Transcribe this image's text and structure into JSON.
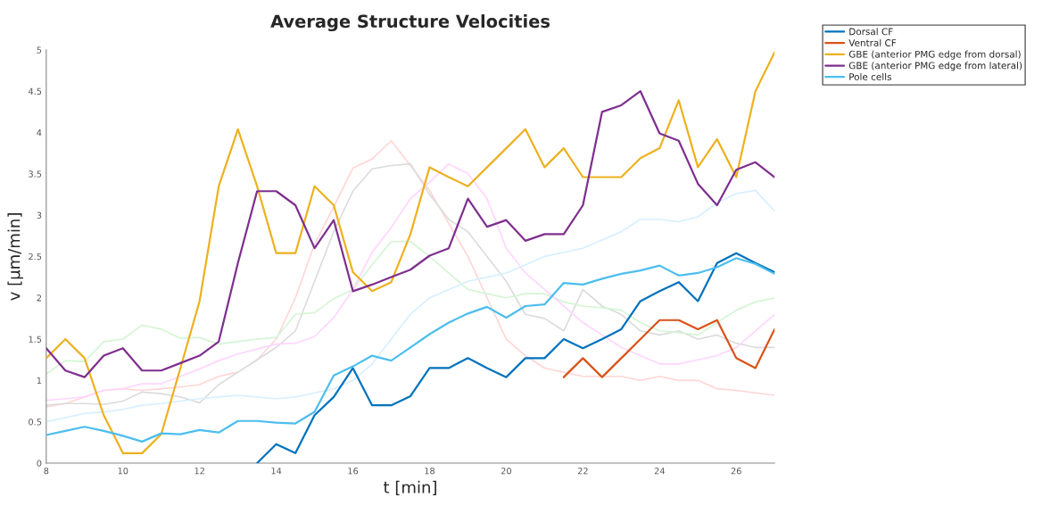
{
  "chart_data": {
    "type": "line",
    "title": "Average Structure Velocities",
    "xlabel": "t [min]",
    "ylabel": "v [µm/min]",
    "x": [
      8,
      8.5,
      9,
      9.5,
      10,
      10.5,
      11,
      11.5,
      12,
      12.5,
      13,
      13.5,
      14,
      14.5,
      15,
      15.5,
      16,
      16.5,
      17,
      17.5,
      18,
      18.5,
      19,
      19.5,
      20,
      20.5,
      21,
      21.5,
      22,
      22.5,
      23,
      23.5,
      24,
      24.5,
      25,
      25.5,
      26,
      26.5,
      27
    ],
    "xlim": [
      8,
      27
    ],
    "xticks": [
      8,
      10,
      12,
      14,
      16,
      18,
      20,
      22,
      24,
      26
    ],
    "ylim": [
      0,
      5
    ],
    "yticks": [
      0,
      0.5,
      1,
      1.5,
      2,
      2.5,
      3,
      3.5,
      4,
      4.5,
      5
    ],
    "grid": false,
    "legend": "top right",
    "line_style": "solid",
    "marker": "none",
    "series": [
      {
        "color": "#ffd6d6",
        "values": [
          0.68,
          0.72,
          0.8,
          0.88,
          0.9,
          0.88,
          0.9,
          0.92,
          0.95,
          1.05,
          1.1,
          1.25,
          1.5,
          2.0,
          2.65,
          3.1,
          3.57,
          3.68,
          3.9,
          3.6,
          3.3,
          2.9,
          2.5,
          2.0,
          1.5,
          1.3,
          1.15,
          1.1,
          1.05,
          1.05,
          1.05,
          1.0,
          1.05,
          1.0,
          1.0,
          0.9,
          0.88,
          0.85,
          0.82
        ]
      },
      {
        "color": "#dcdcdc",
        "values": [
          0.7,
          0.72,
          0.72,
          0.71,
          0.75,
          0.86,
          0.84,
          0.8,
          0.73,
          0.95,
          1.1,
          1.25,
          1.4,
          1.6,
          2.2,
          2.8,
          3.29,
          3.56,
          3.6,
          3.62,
          3.25,
          2.95,
          2.8,
          2.5,
          2.2,
          1.8,
          1.75,
          1.6,
          2.1,
          1.9,
          1.8,
          1.6,
          1.55,
          1.6,
          1.5,
          1.55,
          1.45,
          1.4,
          1.4
        ]
      },
      {
        "color": "#d4f5d4",
        "values": [
          1.08,
          1.24,
          1.23,
          1.47,
          1.5,
          1.67,
          1.62,
          1.51,
          1.52,
          1.44,
          1.47,
          1.5,
          1.52,
          1.8,
          1.82,
          1.99,
          2.1,
          2.4,
          2.68,
          2.68,
          2.5,
          2.3,
          2.1,
          2.05,
          2.0,
          2.05,
          2.05,
          1.95,
          1.9,
          1.88,
          1.85,
          1.7,
          1.6,
          1.58,
          1.55,
          1.7,
          1.85,
          1.95,
          2.0
        ]
      },
      {
        "color": "#ffd6ff",
        "values": [
          0.76,
          0.78,
          0.8,
          0.88,
          0.9,
          0.96,
          0.96,
          1.05,
          1.14,
          1.24,
          1.32,
          1.38,
          1.44,
          1.45,
          1.53,
          1.76,
          2.1,
          2.55,
          2.85,
          3.2,
          3.4,
          3.62,
          3.5,
          3.2,
          2.6,
          2.3,
          2.1,
          1.9,
          1.7,
          1.55,
          1.4,
          1.3,
          1.2,
          1.2,
          1.25,
          1.3,
          1.4,
          1.6,
          1.8
        ]
      },
      {
        "color": "#d6efff",
        "values": [
          0.5,
          0.55,
          0.6,
          0.62,
          0.65,
          0.7,
          0.72,
          0.75,
          0.78,
          0.8,
          0.82,
          0.8,
          0.78,
          0.8,
          0.85,
          0.9,
          1.0,
          1.2,
          1.5,
          1.8,
          2.0,
          2.1,
          2.2,
          2.25,
          2.3,
          2.4,
          2.5,
          2.55,
          2.6,
          2.7,
          2.8,
          2.95,
          2.95,
          2.92,
          2.98,
          3.15,
          3.26,
          3.3,
          3.05
        ]
      },
      {
        "name": "Dorsal CF",
        "color": "#0072bd",
        "values": [
          null,
          null,
          null,
          null,
          null,
          null,
          null,
          null,
          null,
          null,
          null,
          0,
          0.23,
          0.12,
          0.58,
          0.8,
          1.15,
          0.7,
          0.7,
          0.81,
          1.15,
          1.15,
          1.27,
          1.15,
          1.04,
          1.27,
          1.27,
          1.5,
          1.39,
          1.5,
          1.62,
          1.96,
          2.08,
          2.19,
          1.96,
          2.42,
          2.54,
          2.42,
          2.31
        ]
      },
      {
        "name": "Ventral CF",
        "color": "#d95319",
        "values": [
          null,
          null,
          null,
          null,
          null,
          null,
          null,
          null,
          null,
          null,
          null,
          null,
          null,
          null,
          null,
          null,
          null,
          null,
          null,
          null,
          null,
          null,
          null,
          null,
          null,
          null,
          null,
          1.04,
          1.27,
          1.04,
          1.27,
          1.5,
          1.73,
          1.73,
          1.62,
          1.73,
          1.27,
          1.15,
          1.62
        ]
      },
      {
        "name": "GBE (anterior PMG edge from dorsal)",
        "color": "#edb120",
        "values": [
          1.27,
          1.5,
          1.27,
          0.58,
          0.12,
          0.12,
          0.35,
          1.15,
          1.96,
          3.35,
          4.04,
          3.35,
          2.54,
          2.54,
          3.35,
          3.12,
          2.31,
          2.08,
          2.19,
          2.77,
          3.58,
          3.46,
          3.35,
          3.58,
          3.81,
          4.04,
          3.58,
          3.81,
          3.46,
          3.46,
          3.46,
          3.69,
          3.81,
          4.39,
          3.58,
          3.92,
          3.46,
          4.5,
          4.97
        ]
      },
      {
        "name": "GBE (anterior PMG edge from lateral)",
        "color": "#7e2f8e",
        "values": [
          1.39,
          1.12,
          1.04,
          1.3,
          1.39,
          1.12,
          1.12,
          1.21,
          1.3,
          1.47,
          2.42,
          3.29,
          3.29,
          3.12,
          2.6,
          2.94,
          2.08,
          2.16,
          2.25,
          2.34,
          2.51,
          2.6,
          3.2,
          2.86,
          2.94,
          2.69,
          2.77,
          2.77,
          3.12,
          4.25,
          4.33,
          4.5,
          3.99,
          3.9,
          3.38,
          3.12,
          3.55,
          3.64,
          3.46
        ]
      },
      {
        "name": "Pole cells",
        "color": "#4dbeee",
        "values": [
          0.34,
          0.39,
          0.44,
          0.39,
          0.33,
          0.26,
          0.36,
          0.35,
          0.4,
          0.37,
          0.51,
          0.51,
          0.49,
          0.48,
          0.62,
          1.06,
          1.17,
          1.3,
          1.24,
          1.4,
          1.56,
          1.7,
          1.81,
          1.89,
          1.76,
          1.9,
          1.92,
          2.18,
          2.16,
          2.23,
          2.29,
          2.33,
          2.39,
          2.27,
          2.3,
          2.37,
          2.48,
          2.41,
          2.29
        ]
      }
    ]
  }
}
